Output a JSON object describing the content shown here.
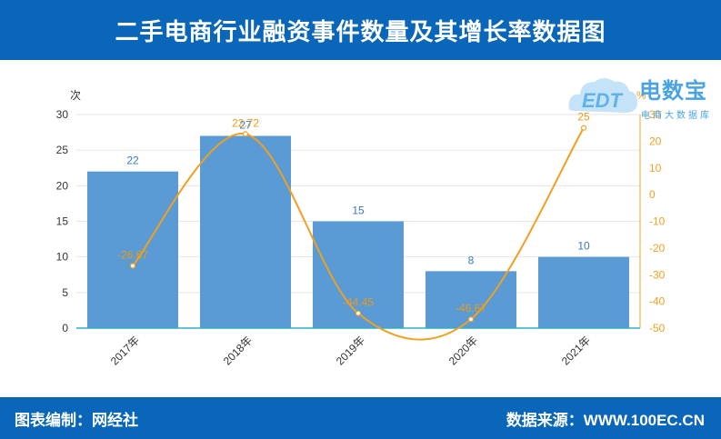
{
  "header": {
    "title": "二手电商行业融资事件数量及其增长率数据图"
  },
  "footer": {
    "left": "图表编制：网经社",
    "right": "数据来源：WWW.100EC.CN"
  },
  "watermark": {
    "name": "电数宝",
    "sub": "电商大数据库",
    "badge": "EDT"
  },
  "chart_data": {
    "type": "bar",
    "categories": [
      "2017年",
      "2018年",
      "2019年",
      "2020年",
      "2021年"
    ],
    "series": [
      {
        "values": [
          22,
          27,
          15,
          8,
          10
        ],
        "color": "#5b9bd5",
        "axis": "left"
      },
      {
        "values": [
          -26.67,
          22.72,
          -44.45,
          -46.67,
          25
        ],
        "color": "#f0a020",
        "axis": "right",
        "type": "line"
      }
    ],
    "y_left": {
      "label": "次",
      "range": [
        0,
        30
      ],
      "ticks": [
        0,
        5,
        10,
        15,
        20,
        25,
        30
      ]
    },
    "y_right": {
      "label": "%",
      "range": [
        -50,
        30
      ],
      "ticks": [
        -50,
        -40,
        -30,
        -20,
        -10,
        0,
        10,
        20,
        30
      ]
    },
    "bar_labels": [
      "22",
      "27",
      "15",
      "8",
      "10"
    ],
    "line_labels": [
      "-26.67",
      "22.72",
      "-44.45",
      "-46.67",
      "25"
    ],
    "grid": true
  }
}
